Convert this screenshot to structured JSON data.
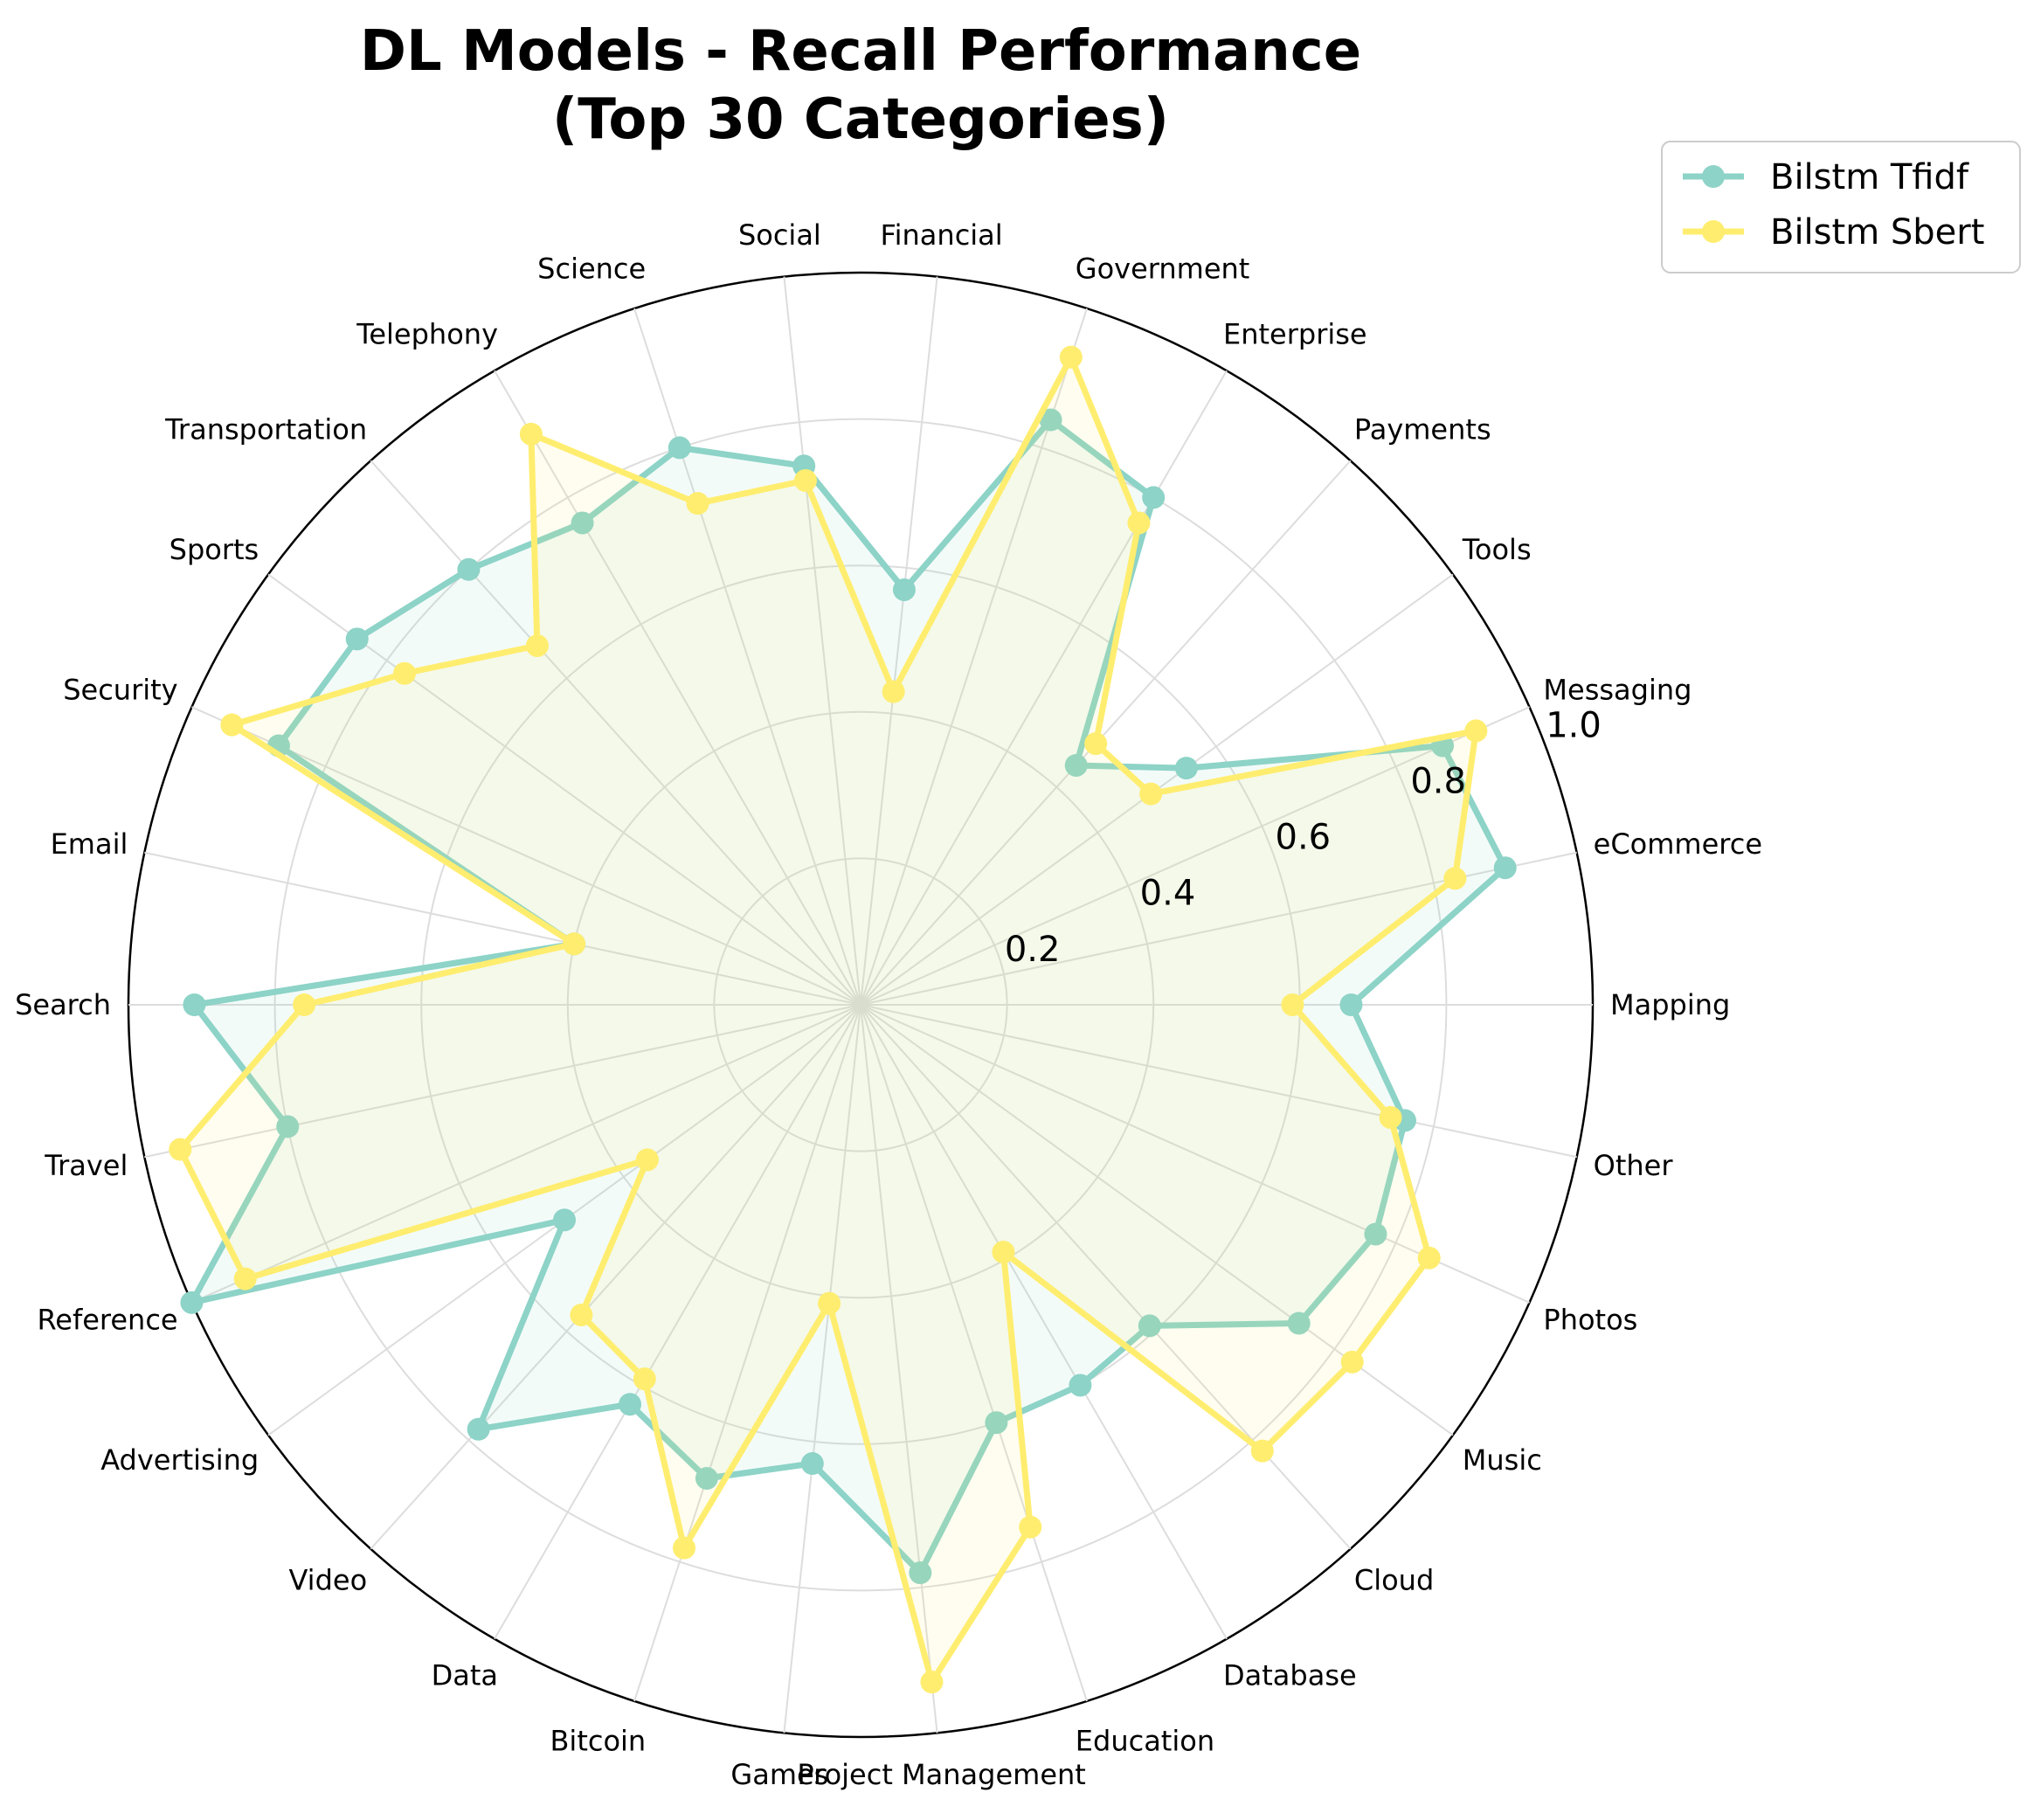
{
  "chart_data": {
    "type": "radar",
    "title_lines": [
      "DL Models - Recall Performance",
      "(Top 30 Categories)"
    ],
    "categories": [
      "Mapping",
      "eCommerce",
      "Messaging",
      "Tools",
      "Payments",
      "Enterprise",
      "Government",
      "Financial",
      "Social",
      "Science",
      "Telephony",
      "Transportation",
      "Sports",
      "Security",
      "Email",
      "Search",
      "Travel",
      "Reference",
      "Advertising",
      "Video",
      "Data",
      "Bitcoin",
      "Games",
      "Project Management",
      "Education",
      "Database",
      "Cloud",
      "Music",
      "Photos",
      "Other"
    ],
    "rlim": [
      0,
      1.0
    ],
    "rticks": [
      0.2,
      0.4,
      0.6,
      0.8,
      1.0
    ],
    "rtick_labels": [
      "0.2",
      "0.4",
      "0.6",
      "0.8",
      "1.0"
    ],
    "grid": true,
    "legend_position": "upper-right, outside plot",
    "series": [
      {
        "name": "Bilstm Tfidf",
        "color": "#8dd3c7",
        "values": [
          0.67,
          0.9,
          0.87,
          0.55,
          0.44,
          0.8,
          0.84,
          0.57,
          0.74,
          0.8,
          0.76,
          0.8,
          0.85,
          0.87,
          0.4,
          0.91,
          0.8,
          1.0,
          0.5,
          0.78,
          0.63,
          0.68,
          0.63,
          0.78,
          0.6,
          0.6,
          0.59,
          0.74,
          0.77,
          0.76
        ]
      },
      {
        "name": "Bilstm Sbert",
        "color": "#ffed6f",
        "values": [
          0.59,
          0.83,
          0.92,
          0.49,
          0.48,
          0.76,
          0.93,
          0.43,
          0.72,
          0.72,
          0.9,
          0.66,
          0.77,
          0.94,
          0.4,
          0.76,
          0.95,
          0.92,
          0.36,
          0.57,
          0.59,
          0.78,
          0.41,
          0.93,
          0.75,
          0.39,
          0.82,
          0.83,
          0.85,
          0.74
        ]
      }
    ]
  }
}
